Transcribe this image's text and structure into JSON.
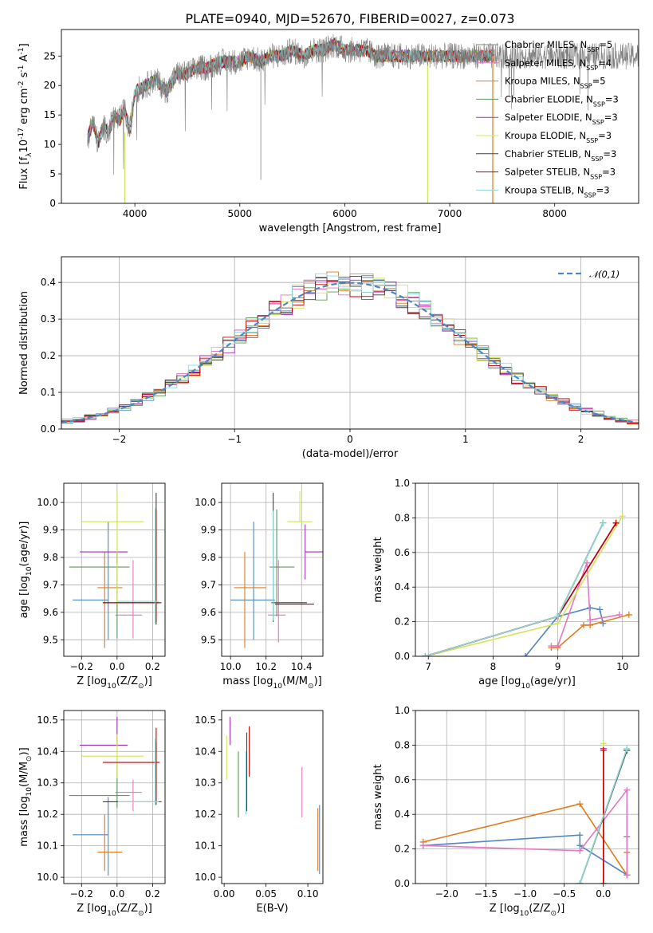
{
  "chart_data": [
    {
      "id": "spectrum",
      "type": "line",
      "title": "PLATE=0940, MJD=52670, FIBERID=0027, z=0.073",
      "xlabel": "wavelength [Angstrom, rest frame]",
      "ylabel": "Flux [f$_\\lambda$10$^{-17}$ erg cm$^{-2}$ s$^{-1}$ A$^{-1}$]",
      "xlim": [
        3300,
        8800
      ],
      "ylim": [
        0,
        29.5
      ],
      "xticks": [
        4000,
        5000,
        6000,
        7000,
        8000
      ],
      "yticks": [
        0,
        5,
        10,
        15,
        20,
        25
      ],
      "grid": false,
      "legend_position": "right",
      "series": [
        {
          "name": "Chabrier MILES, N$_{SSP}$=5",
          "color": "#808080"
        },
        {
          "name": "Salpeter MILES, N$_{SSP}$=4",
          "color": "#e377c2"
        },
        {
          "name": "Kroupa MILES, N$_{SSP}$=5",
          "color": "#e07b1e"
        },
        {
          "name": "Chabrier ELODIE, N$_{SSP}$=3",
          "color": "#5a9a5a"
        },
        {
          "name": "Salpeter ELODIE, N$_{SSP}$=3",
          "color": "#9b30b5"
        },
        {
          "name": "Kroupa ELODIE, N$_{SSP}$=3",
          "color": "#d4e45a"
        },
        {
          "name": "Chabrier STELIB, N$_{SSP}$=3",
          "color": "#404040"
        },
        {
          "name": "Salpeter STELIB, N$_{SSP}$=3",
          "color": "#c00000"
        },
        {
          "name": "Kroupa STELIB, N$_{SSP}$=3",
          "color": "#8fd7d7"
        }
      ],
      "spectrum_data": {
        "x": [
          3550,
          3600,
          3650,
          3700,
          3750,
          3800,
          3850,
          3900,
          3950,
          4000,
          4100,
          4200,
          4300,
          4400,
          4500,
          4600,
          4700,
          4800,
          4900,
          5000,
          5100,
          5200,
          5300,
          5400,
          5500,
          5600,
          5700,
          5800,
          5900,
          6000,
          6100,
          6200,
          6300,
          6400,
          6500,
          6600,
          6700,
          6800,
          6900,
          7000,
          7100,
          7200,
          7300,
          7400
        ],
        "y": [
          11,
          14,
          10,
          13,
          12,
          15,
          14,
          16,
          12,
          19,
          20,
          21,
          19,
          22,
          22,
          23,
          23,
          24,
          24,
          24,
          25,
          24,
          25,
          25,
          26,
          25,
          26,
          26,
          27,
          26,
          26,
          26,
          25,
          25,
          25,
          25,
          25,
          25,
          25,
          25,
          25,
          25,
          25,
          25
        ]
      },
      "model_line_xmax": 7420,
      "data_line_xmax": 8800
    },
    {
      "id": "residual-histogram",
      "type": "line",
      "xlabel": "(data-model)/error",
      "ylabel": "Normed distribution",
      "xlim": [
        -2.5,
        2.5
      ],
      "ylim": [
        0,
        0.47
      ],
      "xticks": [
        -2,
        -1,
        0,
        1,
        2
      ],
      "yticks": [
        0.0,
        0.1,
        0.2,
        0.3,
        0.4
      ],
      "grid": true,
      "legend_position": "top-right",
      "legend": [
        "$\\mathcal{N}(0,1)$"
      ],
      "reference_curve": {
        "name": "N(0,1)",
        "color": "#4f86c6",
        "dashed": true
      }
    },
    {
      "id": "age-vs-Z",
      "type": "scatter",
      "xlabel": "Z [log$_{10}$(Z/Z$_\\odot$)]",
      "ylabel": "age  [log$_{10}$(age/yr)]",
      "xlim": [
        -0.3,
        0.27
      ],
      "ylim": [
        9.44,
        10.07
      ],
      "xticks": [
        -0.2,
        0.0,
        0.2
      ],
      "yticks": [
        9.5,
        9.6,
        9.7,
        9.8,
        9.9,
        10.0
      ],
      "grid": true,
      "points": [
        {
          "x": -0.05,
          "y": 9.645,
          "xerr": [
            0.2,
            0.0
          ],
          "yerr": [
            0.145,
            0.285
          ],
          "color": "#4f86c6"
        },
        {
          "x": -0.07,
          "y": 9.69,
          "xerr": [
            0.04,
            0.1
          ],
          "yerr": [
            0.22,
            0.13
          ],
          "color": "#e07b1e"
        },
        {
          "x": 0.09,
          "y": 9.59,
          "xerr": [
            0.1,
            0.05
          ],
          "yerr": [
            0.085,
            0.2
          ],
          "color": "#e377c2"
        },
        {
          "x": 0.0,
          "y": 9.765,
          "xerr": [
            0.27,
            0.07
          ],
          "yerr": [
            0.26,
            0.05
          ],
          "color": "#5a9a5a"
        },
        {
          "x": 0.0,
          "y": 9.82,
          "xerr": [
            0.21,
            0.06
          ],
          "yerr": [
            0.04,
            0.0
          ],
          "color": "#9b30b5"
        },
        {
          "x": 0.0,
          "y": 9.93,
          "xerr": [
            0.2,
            0.15
          ],
          "yerr": [
            0.3,
            0.11
          ],
          "color": "#d4e45a"
        },
        {
          "x": 0.22,
          "y": 9.635,
          "xerr": [
            0.3,
            0.03
          ],
          "yerr": [
            0.08,
            0.4
          ],
          "color": "#404040"
        },
        {
          "x": 0.22,
          "y": 9.635,
          "xerr": [
            0.3,
            0.02
          ],
          "yerr": [
            0.07,
            0.34
          ],
          "color": "#c00000"
        },
        {
          "x": 0.215,
          "y": 9.64,
          "xerr": [
            0.21,
            0.02
          ],
          "yerr": [
            0.08,
            0.34
          ],
          "color": "#8fd7d7"
        }
      ]
    },
    {
      "id": "age-vs-mass",
      "type": "scatter",
      "xlabel": "mass [log$_{10}$(M/M$_\\odot$)]",
      "xlim": [
        9.95,
        10.52
      ],
      "ylim": [
        9.44,
        10.07
      ],
      "xticks": [
        10.0,
        10.2,
        10.4
      ],
      "yticks": [
        9.5,
        9.6,
        9.7,
        9.8,
        9.9,
        10.0
      ],
      "grid": true,
      "points": [
        {
          "x": 10.13,
          "y": 9.645,
          "xerr": [
            0.13,
            0.12
          ],
          "yerr": [
            0.145,
            0.285
          ],
          "color": "#4f86c6"
        },
        {
          "x": 10.08,
          "y": 9.69,
          "xerr": [
            0.06,
            0.12
          ],
          "yerr": [
            0.22,
            0.13
          ],
          "color": "#e07b1e"
        },
        {
          "x": 10.27,
          "y": 9.59,
          "xerr": [
            0.06,
            0.04
          ],
          "yerr": [
            0.1,
            0.2
          ],
          "color": "#e377c2"
        },
        {
          "x": 10.26,
          "y": 9.765,
          "xerr": [
            0.04,
            0.1
          ],
          "yerr": [
            0.18,
            0.21
          ],
          "color": "#5a9a5a"
        },
        {
          "x": 10.42,
          "y": 9.82,
          "xerr": [
            0.0,
            0.1
          ],
          "yerr": [
            0.1,
            0.1
          ],
          "color": "#9b30b5"
        },
        {
          "x": 10.39,
          "y": 9.93,
          "xerr": [
            0.07,
            0.07
          ],
          "yerr": [
            0.0,
            0.11
          ],
          "color": "#d4e45a"
        },
        {
          "x": 10.24,
          "y": 9.635,
          "xerr": [
            0.01,
            0.19
          ],
          "yerr": [
            0.07,
            0.4
          ],
          "color": "#404040"
        },
        {
          "x": 10.37,
          "y": 9.63,
          "xerr": [
            0.12,
            0.1
          ],
          "yerr": [
            0.0,
            0.0
          ],
          "color": "#c00000"
        },
        {
          "x": 10.24,
          "y": 9.63,
          "xerr": [
            0.0,
            0.0
          ],
          "yerr": [
            0.06,
            0.34
          ],
          "color": "#8fd7d7"
        }
      ]
    },
    {
      "id": "mass-weight-vs-age",
      "type": "line",
      "xlabel": "age  [log$_{10}$(age/yr)]",
      "ylabel": "mass weight",
      "xlim": [
        6.8,
        10.25
      ],
      "ylim": [
        0.0,
        1.0
      ],
      "xticks": [
        7,
        8,
        9,
        10
      ],
      "yticks": [
        0.0,
        0.2,
        0.4,
        0.6,
        0.8,
        1.0
      ],
      "grid": true,
      "series": [
        {
          "color": "#4f86c6",
          "x": [
            8.5,
            9.0,
            9.5,
            9.65,
            9.7
          ],
          "y": [
            0.0,
            0.23,
            0.28,
            0.27,
            0.19
          ]
        },
        {
          "color": "#e07b1e",
          "x": [
            8.9,
            9.0,
            9.4,
            9.5,
            10.1
          ],
          "y": [
            0.05,
            0.05,
            0.18,
            0.18,
            0.24
          ]
        },
        {
          "color": "#e377c2",
          "x": [
            8.9,
            9.0,
            9.45,
            9.5,
            9.95
          ],
          "y": [
            0.06,
            0.06,
            0.54,
            0.21,
            0.24
          ]
        },
        {
          "color": "#5a9a5a",
          "x": [
            6.95,
            9.0,
            9.7
          ],
          "y": [
            0.0,
            0.23,
            0.77
          ]
        },
        {
          "color": "#9b30b5",
          "x": [
            6.95,
            9.0,
            9.9
          ],
          "y": [
            0.0,
            0.23,
            0.77
          ]
        },
        {
          "color": "#d4e45a",
          "x": [
            6.95,
            9.0,
            10.0
          ],
          "y": [
            0.0,
            0.19,
            0.81
          ]
        },
        {
          "color": "#404040",
          "x": [
            6.95,
            9.0,
            9.7
          ],
          "y": [
            0.0,
            0.23,
            0.77
          ]
        },
        {
          "color": "#c00000",
          "x": [
            6.95,
            9.0,
            9.9
          ],
          "y": [
            0.0,
            0.23,
            0.77
          ]
        },
        {
          "color": "#8fd7d7",
          "x": [
            6.95,
            9.0,
            9.7
          ],
          "y": [
            0.0,
            0.23,
            0.77
          ]
        }
      ]
    },
    {
      "id": "mass-vs-Z",
      "type": "scatter",
      "xlabel": "Z [log$_{10}$(Z/Z$_\\odot$)]",
      "ylabel": "mass [log$_{10}$(M/M$_\\odot$)]",
      "xlim": [
        -0.3,
        0.27
      ],
      "ylim": [
        9.98,
        10.53
      ],
      "xticks": [
        -0.2,
        0.0,
        0.2
      ],
      "yticks": [
        10.0,
        10.1,
        10.2,
        10.3,
        10.4,
        10.5
      ],
      "grid": true,
      "points": [
        {
          "x": -0.05,
          "y": 10.135,
          "xerr": [
            0.2,
            0.0
          ],
          "yerr": [
            0.13,
            0.12
          ],
          "color": "#4f86c6"
        },
        {
          "x": -0.07,
          "y": 10.08,
          "xerr": [
            0.04,
            0.1
          ],
          "yerr": [
            0.06,
            0.12
          ],
          "color": "#e07b1e"
        },
        {
          "x": 0.09,
          "y": 10.27,
          "xerr": [
            0.1,
            0.05
          ],
          "yerr": [
            0.06,
            0.04
          ],
          "color": "#e377c2"
        },
        {
          "x": 0.0,
          "y": 10.26,
          "xerr": [
            0.27,
            0.07
          ],
          "yerr": [
            0.04,
            0.1
          ],
          "color": "#5a9a5a"
        },
        {
          "x": 0.0,
          "y": 10.42,
          "xerr": [
            0.21,
            0.06
          ],
          "yerr": [
            0.0,
            0.09
          ],
          "color": "#9b30b5"
        },
        {
          "x": 0.0,
          "y": 10.385,
          "xerr": [
            0.2,
            0.15
          ],
          "yerr": [
            0.07,
            0.07
          ],
          "color": "#d4e45a"
        },
        {
          "x": 0.22,
          "y": 10.24,
          "xerr": [
            0.3,
            0.03
          ],
          "yerr": [
            0.01,
            0.19
          ],
          "color": "#404040"
        },
        {
          "x": 0.22,
          "y": 10.365,
          "xerr": [
            0.3,
            0.02
          ],
          "yerr": [
            0.12,
            0.11
          ],
          "color": "#c00000"
        },
        {
          "x": 0.215,
          "y": 10.24,
          "xerr": [
            0.21,
            0.02
          ],
          "yerr": [
            0.01,
            0.2
          ],
          "color": "#8fd7d7"
        }
      ]
    },
    {
      "id": "mass-vs-EBV",
      "type": "scatter",
      "xlabel": "E(B-V)",
      "xlim": [
        -0.003,
        0.118
      ],
      "ylim": [
        9.98,
        10.53
      ],
      "xticks": [
        0.0,
        0.05,
        0.1
      ],
      "yticks": [
        10.0,
        10.1,
        10.2,
        10.3,
        10.4,
        10.5
      ],
      "grid": false,
      "points": [
        {
          "x": 0.112,
          "y": 10.12,
          "yerr": [
            0.1,
            0.1
          ],
          "color": "#e07b1e"
        },
        {
          "x": 0.114,
          "y": 10.13,
          "yerr": [
            0.12,
            0.1
          ],
          "color": "#4f86c6"
        },
        {
          "x": 0.093,
          "y": 10.27,
          "yerr": [
            0.08,
            0.08
          ],
          "color": "#e377c2"
        },
        {
          "x": 0.017,
          "y": 10.3,
          "yerr": [
            0.11,
            0.1
          ],
          "color": "#5a9a5a"
        },
        {
          "x": 0.007,
          "y": 10.42,
          "yerr": [
            0.0,
            0.09
          ],
          "color": "#9b30b5"
        },
        {
          "x": 0.003,
          "y": 10.39,
          "yerr": [
            0.08,
            0.06
          ],
          "color": "#d4e45a"
        },
        {
          "x": 0.027,
          "y": 10.37,
          "yerr": [
            0.16,
            0.09
          ],
          "color": "#404040"
        },
        {
          "x": 0.03,
          "y": 10.4,
          "yerr": [
            0.08,
            0.08
          ],
          "color": "#c00000"
        },
        {
          "x": 0.026,
          "y": 10.3,
          "yerr": [
            0.1,
            0.1
          ],
          "color": "#8fd7d7"
        }
      ]
    },
    {
      "id": "mass-weight-vs-Z",
      "type": "line",
      "xlabel": "Z [log$_{10}$(Z/Z$_\\odot$)]",
      "ylabel": "mass weight",
      "xlim": [
        -2.4,
        0.45
      ],
      "ylim": [
        0.0,
        1.0
      ],
      "xticks": [
        -2.0,
        -1.5,
        -1.0,
        -0.5,
        0.0
      ],
      "yticks": [
        0.0,
        0.2,
        0.4,
        0.6,
        0.8,
        1.0
      ],
      "grid": true,
      "series": [
        {
          "color": "#4f86c6",
          "x": [
            -2.3,
            -0.3,
            -0.3,
            0.3,
            0.3
          ],
          "y": [
            0.22,
            0.28,
            0.22,
            0.05,
            0.27
          ]
        },
        {
          "color": "#e07b1e",
          "x": [
            -2.3,
            -0.3,
            0.3,
            0.3,
            0.3
          ],
          "y": [
            0.24,
            0.46,
            0.05,
            0.18,
            0.05
          ]
        },
        {
          "color": "#e377c2",
          "x": [
            -2.3,
            -0.3,
            0.3,
            0.3
          ],
          "y": [
            0.22,
            0.19,
            0.54,
            0.05
          ]
        },
        {
          "color": "#5a9a5a",
          "x": [
            -0.3,
            0.3
          ],
          "y": [
            0.0,
            0.77
          ]
        },
        {
          "color": "#9b30b5",
          "x": [
            0.0,
            0.0
          ],
          "y": [
            0.0,
            0.78
          ]
        },
        {
          "color": "#d4e45a",
          "x": [
            0.0,
            0.0
          ],
          "y": [
            0.0,
            0.81
          ]
        },
        {
          "color": "#404040",
          "x": [
            -0.3,
            0.3
          ],
          "y": [
            0.0,
            0.77
          ]
        },
        {
          "color": "#c00000",
          "x": [
            0.0,
            0.0
          ],
          "y": [
            0.0,
            0.77
          ]
        },
        {
          "color": "#8fd7d7",
          "x": [
            -0.3,
            0.3
          ],
          "y": [
            0.0,
            0.78
          ]
        }
      ]
    }
  ]
}
